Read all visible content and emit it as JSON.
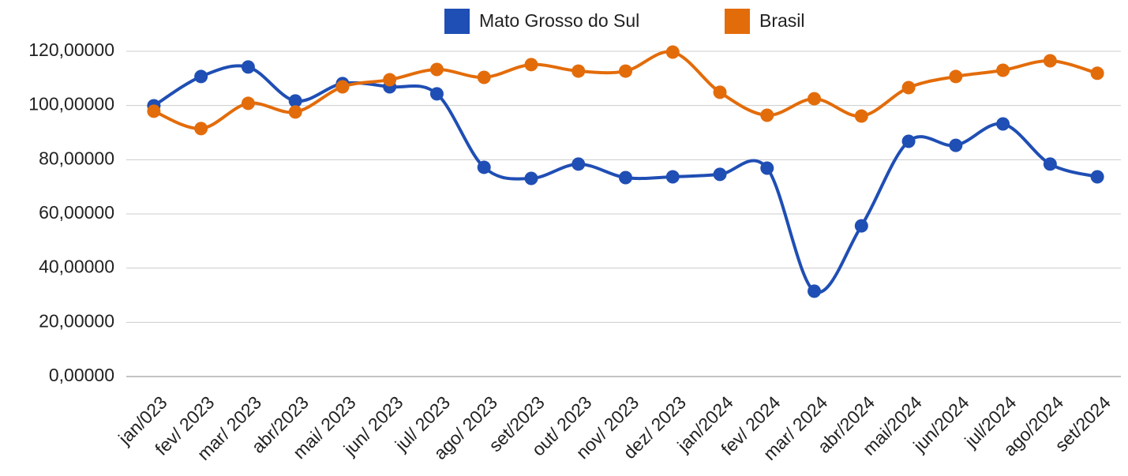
{
  "chart_data": {
    "type": "line",
    "categories": [
      "jan/023",
      "fev/ 2023",
      "mar/ 2023",
      "abr/2023",
      "mai/ 2023",
      "jun/ 2023",
      "jul/ 2023",
      "ago/ 2023",
      "set/2023",
      "out/ 2023",
      "nov/ 2023",
      "dez/ 2023",
      "jan/2024",
      "fev/ 2024",
      "mar/ 2024",
      "abr/2024",
      "mai/2024",
      "jun/2024",
      "jul/2024",
      "ago/2024",
      "set/2024"
    ],
    "series": [
      {
        "name": "Mato Grosso do Sul",
        "color": "#1f4eb4",
        "values": [
          99.9,
          110.7,
          114.2,
          101.7,
          108.1,
          106.9,
          104.3,
          77.2,
          73.1,
          78.4,
          73.4,
          73.7,
          74.6,
          76.9,
          31.5,
          55.6,
          86.8,
          85.3,
          93.2,
          78.4,
          73.7
        ]
      },
      {
        "name": "Brasil",
        "color": "#e36c0a",
        "values": [
          97.9,
          91.5,
          100.8,
          97.6,
          106.9,
          109.5,
          113.3,
          110.4,
          115.1,
          112.7,
          112.7,
          119.7,
          104.9,
          96.4,
          102.5,
          96.1,
          106.6,
          110.7,
          113.0,
          116.5,
          111.9
        ]
      }
    ],
    "ylim": [
      0,
      120
    ],
    "yticks": [
      {
        "value": 0,
        "label": "0,00000"
      },
      {
        "value": 20,
        "label": "20,00000"
      },
      {
        "value": 40,
        "label": "40,00000"
      },
      {
        "value": 60,
        "label": "60,00000"
      },
      {
        "value": 80,
        "label": "80,00000"
      },
      {
        "value": 100,
        "label": "100,00000"
      },
      {
        "value": 120,
        "label": "120,00000"
      }
    ],
    "grid": true,
    "legend": "top"
  }
}
